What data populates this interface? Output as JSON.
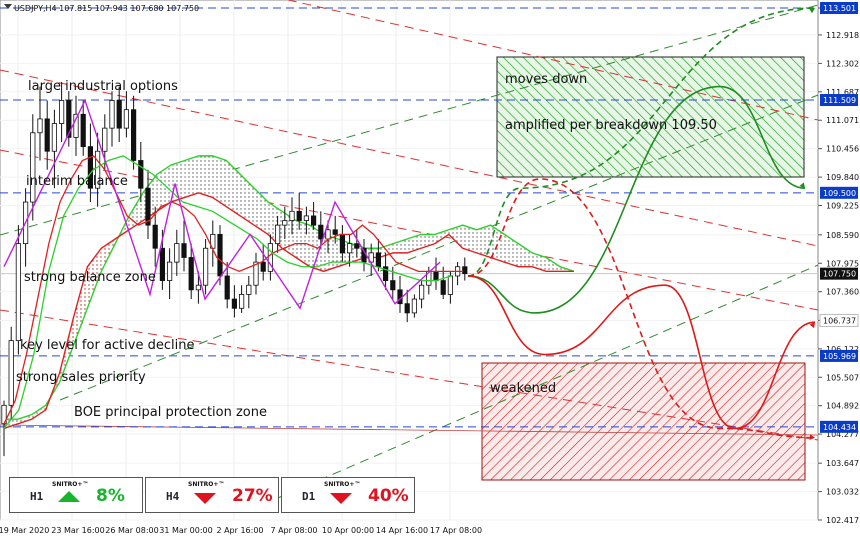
{
  "chart_data": {
    "type": "candlestick",
    "header": "USDJPY,H4  107.815 107.943 107.680 107.750",
    "ylim": [
      102.417,
      113.501
    ],
    "price_ticks": [
      "113.501",
      "112.918",
      "112.302",
      "111.687",
      "111.071",
      "110.456",
      "109.840",
      "109.225",
      "108.590",
      "107.975",
      "107.360",
      "106.737",
      "106.122",
      "105.507",
      "104.892",
      "104.277",
      "103.647",
      "103.032",
      "102.417"
    ],
    "x_ticks": [
      "19 Mar 2020",
      "23 Mar 16:00",
      "26 Mar 08:00",
      "31 Mar 00:00",
      "2 Apr 16:00",
      "7 Apr 08:00",
      "10 Apr 00:00",
      "14 Apr 16:00",
      "17 Apr 08:00"
    ],
    "current_price": "107.750",
    "level_labels": [
      {
        "value": "113.501",
        "color": "#0a3cc8"
      },
      {
        "value": "111.509",
        "color": "#0a3cc8"
      },
      {
        "value": "109.500",
        "color": "#0a3cc8"
      },
      {
        "value": "106.737",
        "color": "#ffffff"
      },
      {
        "value": "105.969",
        "color": "#0a3cc8"
      },
      {
        "value": "104.434",
        "color": "#0a3cc8"
      }
    ],
    "annotations": [
      "large industrial options",
      "interim balance",
      "strong balance zone",
      "key level for active decline",
      "strong sales priority",
      "BOE principal protection zone",
      "moves down",
      "amplified per breakdown 109.50",
      "weakened"
    ],
    "ohlc": [
      [
        104.5,
        105.0,
        103.8,
        104.9
      ],
      [
        104.9,
        106.6,
        104.6,
        106.3
      ],
      [
        106.3,
        108.8,
        106.0,
        108.4
      ],
      [
        108.4,
        109.6,
        107.9,
        109.3
      ],
      [
        109.3,
        111.2,
        108.9,
        110.8
      ],
      [
        110.8,
        111.8,
        110.2,
        111.1
      ],
      [
        111.1,
        111.5,
        110.0,
        110.4
      ],
      [
        110.4,
        111.3,
        109.6,
        111.0
      ],
      [
        111.0,
        111.9,
        110.6,
        111.5
      ],
      [
        111.5,
        111.7,
        110.5,
        110.7
      ],
      [
        110.7,
        111.6,
        110.3,
        111.2
      ],
      [
        111.2,
        111.5,
        110.3,
        110.5
      ],
      [
        110.5,
        111.0,
        109.3,
        109.6
      ],
      [
        109.6,
        110.8,
        109.2,
        110.4
      ],
      [
        110.4,
        111.2,
        110.0,
        110.9
      ],
      [
        110.9,
        111.7,
        110.5,
        111.5
      ],
      [
        111.5,
        111.8,
        110.6,
        110.9
      ],
      [
        110.9,
        111.7,
        110.7,
        111.3
      ],
      [
        111.3,
        111.6,
        110.0,
        110.2
      ],
      [
        110.2,
        110.6,
        109.3,
        109.6
      ],
      [
        109.6,
        110.0,
        108.5,
        108.8
      ],
      [
        108.8,
        109.2,
        107.9,
        108.3
      ],
      [
        108.3,
        108.7,
        107.4,
        107.6
      ],
      [
        107.6,
        108.3,
        107.2,
        108.0
      ],
      [
        108.0,
        108.7,
        107.7,
        108.4
      ],
      [
        108.4,
        108.9,
        107.8,
        108.1
      ],
      [
        108.1,
        108.4,
        107.2,
        107.4
      ],
      [
        107.4,
        107.8,
        107.1,
        107.5
      ],
      [
        107.5,
        108.5,
        107.3,
        108.3
      ],
      [
        108.3,
        108.9,
        107.9,
        108.6
      ],
      [
        108.6,
        108.8,
        107.5,
        107.7
      ],
      [
        107.7,
        108.0,
        107.0,
        107.2
      ],
      [
        107.2,
        107.5,
        106.8,
        107.0
      ],
      [
        107.0,
        107.5,
        106.9,
        107.3
      ],
      [
        107.3,
        107.7,
        107.0,
        107.5
      ],
      [
        107.5,
        108.2,
        107.3,
        108.0
      ],
      [
        108.0,
        108.4,
        107.6,
        107.8
      ],
      [
        107.8,
        108.6,
        107.6,
        108.4
      ],
      [
        108.4,
        109.0,
        108.2,
        108.8
      ],
      [
        108.8,
        109.2,
        108.5,
        108.9
      ],
      [
        108.9,
        109.4,
        108.6,
        109.1
      ],
      [
        109.1,
        109.5,
        108.7,
        108.9
      ],
      [
        108.9,
        109.2,
        108.6,
        109.0
      ],
      [
        109.0,
        109.3,
        108.7,
        108.8
      ],
      [
        108.8,
        109.1,
        108.3,
        108.5
      ],
      [
        108.5,
        108.9,
        108.2,
        108.7
      ],
      [
        108.7,
        109.0,
        108.4,
        108.6
      ],
      [
        108.6,
        108.8,
        108.0,
        108.2
      ],
      [
        108.2,
        108.6,
        107.9,
        108.4
      ],
      [
        108.4,
        108.7,
        108.1,
        108.3
      ],
      [
        108.3,
        108.5,
        107.8,
        108.0
      ],
      [
        108.0,
        108.4,
        107.7,
        108.2
      ],
      [
        108.2,
        108.5,
        107.8,
        107.9
      ],
      [
        107.9,
        108.2,
        107.4,
        107.6
      ],
      [
        107.6,
        107.9,
        107.2,
        107.4
      ],
      [
        107.4,
        107.7,
        106.9,
        107.1
      ],
      [
        107.1,
        107.4,
        106.7,
        106.9
      ],
      [
        106.9,
        107.3,
        106.8,
        107.2
      ],
      [
        107.2,
        107.6,
        107.0,
        107.5
      ],
      [
        107.5,
        107.9,
        107.3,
        107.8
      ],
      [
        107.8,
        108.1,
        107.4,
        107.6
      ],
      [
        107.6,
        107.9,
        107.2,
        107.3
      ],
      [
        107.3,
        107.8,
        107.1,
        107.7
      ],
      [
        107.7,
        108.0,
        107.5,
        107.9
      ],
      [
        107.9,
        108.1,
        107.6,
        107.75
      ]
    ],
    "senkou_a": [
      104.6,
      104.6,
      104.7,
      104.9,
      105.4,
      106.2,
      107.0,
      107.8,
      108.4,
      109.0,
      109.5,
      109.9,
      110.1,
      110.2,
      110.3,
      110.3,
      110.2,
      109.9,
      109.6,
      109.3,
      109.1,
      108.9,
      108.8,
      108.6,
      108.5,
      108.4,
      108.3,
      108.3,
      108.4,
      108.5,
      108.6,
      108.6,
      108.7,
      108.8,
      108.7,
      108.8,
      108.6,
      108.4,
      108.2,
      108.1,
      107.9,
      107.8
    ],
    "senkou_b": [
      104.4,
      104.5,
      104.6,
      104.8,
      105.6,
      106.8,
      107.9,
      108.3,
      108.5,
      108.7,
      108.9,
      109.1,
      109.3,
      109.4,
      109.5,
      109.4,
      109.2,
      109.0,
      108.8,
      108.6,
      108.3,
      108.1,
      107.9,
      107.8,
      107.9,
      108.0,
      108.1,
      108.1,
      108.2,
      108.2,
      108.3,
      108.4,
      108.6,
      108.3,
      108.2,
      108.1,
      108.0,
      107.9,
      107.9,
      107.8,
      107.8,
      107.8
    ],
    "tenkan": [
      104.5,
      105.0,
      106.0,
      107.2,
      108.4,
      109.3,
      109.8,
      110.2,
      110.3,
      110.0,
      109.5,
      109.0,
      108.8,
      108.9,
      109.2,
      109.3,
      109.2,
      109.0,
      108.6,
      108.1,
      107.9,
      107.8,
      107.9,
      108.0,
      108.2,
      108.3,
      108.4,
      108.4,
      108.3,
      108.5,
      108.6,
      108.6,
      108.8,
      108.6,
      108.3,
      108.0,
      107.9,
      107.8,
      107.8,
      107.8,
      107.8,
      107.8
    ],
    "kijun": [
      104.4,
      104.8,
      106.0,
      107.8,
      109.0,
      109.6,
      110.0,
      110.2,
      110.3,
      110.1,
      109.9,
      109.6,
      109.3,
      109.2,
      109.1,
      108.9,
      108.7,
      108.5,
      108.2,
      108.0,
      107.9,
      107.9,
      108.0,
      108.0,
      108.0,
      107.9,
      107.8,
      107.7,
      107.6,
      107.6,
      107.7
    ],
    "zigzag": [
      107.9,
      111.5,
      107.3,
      109.7,
      107.2,
      108.6,
      107.0,
      109.3,
      107.1,
      108.0
    ],
    "forecasts": [
      {
        "color": "#1e8c1e",
        "style": "dashed",
        "points": [
          [
            107.7
          ],
          [
            109.6
          ],
          [
            113.5
          ]
        ]
      },
      {
        "color": "#1e8c1e",
        "style": "solid",
        "points": [
          [
            107.7
          ],
          [
            106.9
          ],
          [
            111.8
          ],
          [
            109.6
          ]
        ]
      },
      {
        "color": "#e01818",
        "style": "dashed",
        "points": [
          [
            107.7
          ],
          [
            109.8
          ],
          [
            104.4
          ],
          [
            104.2
          ]
        ]
      },
      {
        "color": "#e01818",
        "style": "solid",
        "points": [
          [
            107.7
          ],
          [
            106.0
          ],
          [
            107.5
          ],
          [
            104.4
          ],
          [
            106.7
          ]
        ]
      }
    ]
  },
  "signals": [
    {
      "timeframe": "H1",
      "brand": "SNITRO+™",
      "direction": "up",
      "value": "8%",
      "color": "#17b62a"
    },
    {
      "timeframe": "H4",
      "brand": "SNITRO+™",
      "direction": "down",
      "value": "27%",
      "color": "#e0121f"
    },
    {
      "timeframe": "D1",
      "brand": "SNITRO+™",
      "direction": "down",
      "value": "40%",
      "color": "#e0121f"
    }
  ]
}
